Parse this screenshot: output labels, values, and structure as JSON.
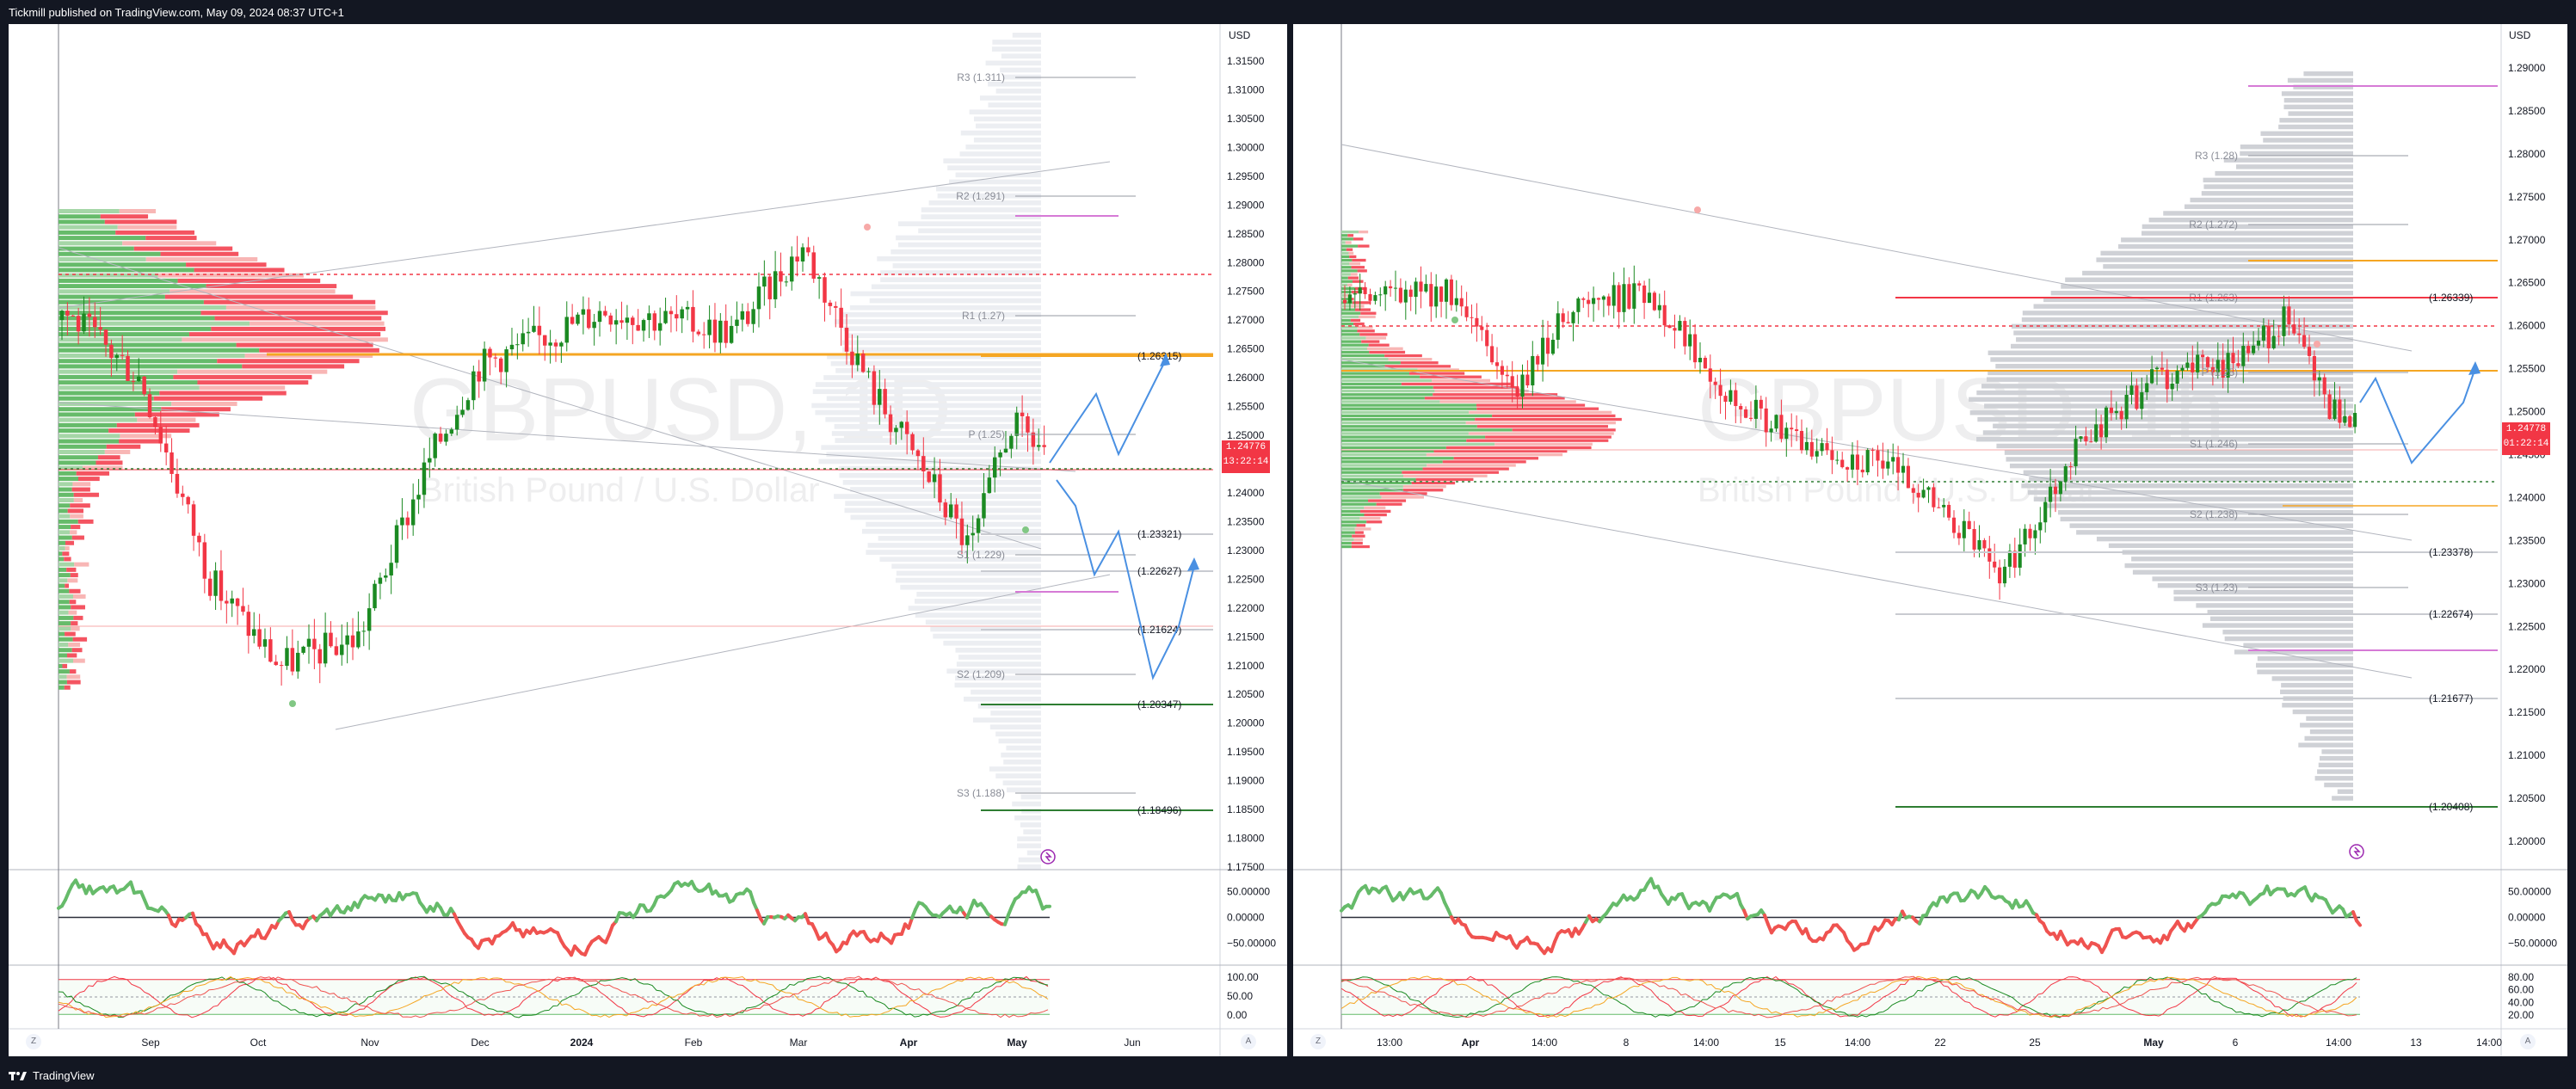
{
  "header": {
    "text": "Tickmill published on TradingView.com, May 09, 2024 08:37 UTC+1"
  },
  "footer": {
    "brand": "TradingView",
    "logo": "tradingview-logo-icon"
  },
  "colors": {
    "up": "#089981",
    "upBody": "#1b8a22",
    "down": "#f23645",
    "accent_orange": "#f5a623",
    "green_level": "#2e7d32",
    "magenta": "#d67ad6"
  },
  "left": {
    "watermark": {
      "symbol": "GBPUSD, 1D",
      "description": "British Pound / U.S. Dollar"
    },
    "axis_unit": "USD",
    "price_ticks": [
      "1.31500",
      "1.31000",
      "1.30500",
      "1.30000",
      "1.29500",
      "1.29000",
      "1.28500",
      "1.28000",
      "1.27500",
      "1.27000",
      "1.26500",
      "1.26000",
      "1.25500",
      "1.25000",
      "1.24500",
      "1.24000",
      "1.23500",
      "1.23000",
      "1.22500",
      "1.22000",
      "1.21500",
      "1.21000",
      "1.20500",
      "1.20000",
      "1.19500",
      "1.19000",
      "1.18500",
      "1.18000",
      "1.17500"
    ],
    "price_tag": {
      "price": "1.24776",
      "countdown": "13:22:14"
    },
    "pivots": [
      {
        "label": "R3 (1.311)"
      },
      {
        "label": "R2 (1.291)"
      },
      {
        "label": "R1 (1.27)"
      },
      {
        "label": "P (1.25)"
      },
      {
        "label": "S1 (1.229)"
      },
      {
        "label": "S2 (1.209)"
      },
      {
        "label": "S3 (1.188)"
      }
    ],
    "levels": [
      {
        "label": "(1.26315)",
        "color": "#f5a623"
      },
      {
        "label": "(1.23321)",
        "color": "#c9cbd1"
      },
      {
        "label": "(1.22627)",
        "color": "#c9cbd1"
      },
      {
        "label": "(1.21624)",
        "color": "#c9cbd1"
      },
      {
        "label": "(1.20347)",
        "color": "#2e7d32"
      },
      {
        "label": "(1.18496)",
        "color": "#2e7d32"
      }
    ],
    "osc1_ticks": [
      "50.00000",
      "0.00000",
      "−50.00000"
    ],
    "osc2_ticks": [
      "100.00",
      "50.00",
      "0.00"
    ],
    "time_ticks": [
      "Sep",
      "Oct",
      "Nov",
      "Dec",
      "2024",
      "Feb",
      "Mar",
      "Apr",
      "May",
      "Jun"
    ],
    "scale_buttons": [
      "Z",
      "A"
    ],
    "alert_icon": "alert-clock-icon"
  },
  "right": {
    "watermark": {
      "symbol": "GBPUSD, 1h",
      "description": "British Pound / U.S. Dollar"
    },
    "axis_unit": "USD",
    "price_ticks": [
      "1.29000",
      "1.28500",
      "1.28000",
      "1.27500",
      "1.27000",
      "1.26500",
      "1.26000",
      "1.25500",
      "1.25000",
      "1.24500",
      "1.24000",
      "1.23500",
      "1.23000",
      "1.22500",
      "1.22000",
      "1.21500",
      "1.21000",
      "1.20500",
      "1.20000"
    ],
    "price_tag": {
      "price": "1.24778",
      "countdown": "01:22:14"
    },
    "pivots": [
      {
        "label": "R3 (1.28)"
      },
      {
        "label": "R2 (1.272)"
      },
      {
        "label": "R1 (1.263)"
      },
      {
        "label": "P (1.25)"
      },
      {
        "label": "S1 (1.246)"
      },
      {
        "label": "S2 (1.238)"
      },
      {
        "label": "S3 (1.23)"
      }
    ],
    "levels": [
      {
        "label": "(1.26339)",
        "color": "#f23645"
      },
      {
        "label": "(1.23378)",
        "color": "#c9cbd1"
      },
      {
        "label": "(1.22674)",
        "color": "#c9cbd1"
      },
      {
        "label": "(1.21677)",
        "color": "#c9cbd1"
      },
      {
        "label": "(1.20408)",
        "color": "#2e7d32"
      }
    ],
    "osc1_ticks": [
      "50.00000",
      "0.00000",
      "−50.00000"
    ],
    "osc2_ticks": [
      "80.00",
      "60.00",
      "40.00",
      "20.00"
    ],
    "time_ticks": [
      "13:00",
      "Apr",
      "14:00",
      "8",
      "14:00",
      "15",
      "14:00",
      "22",
      "25",
      "May",
      "6",
      "14:00",
      "13",
      "14:00"
    ],
    "scale_buttons": [
      "Z",
      "A"
    ],
    "alert_icon": "alert-clock-icon"
  }
}
